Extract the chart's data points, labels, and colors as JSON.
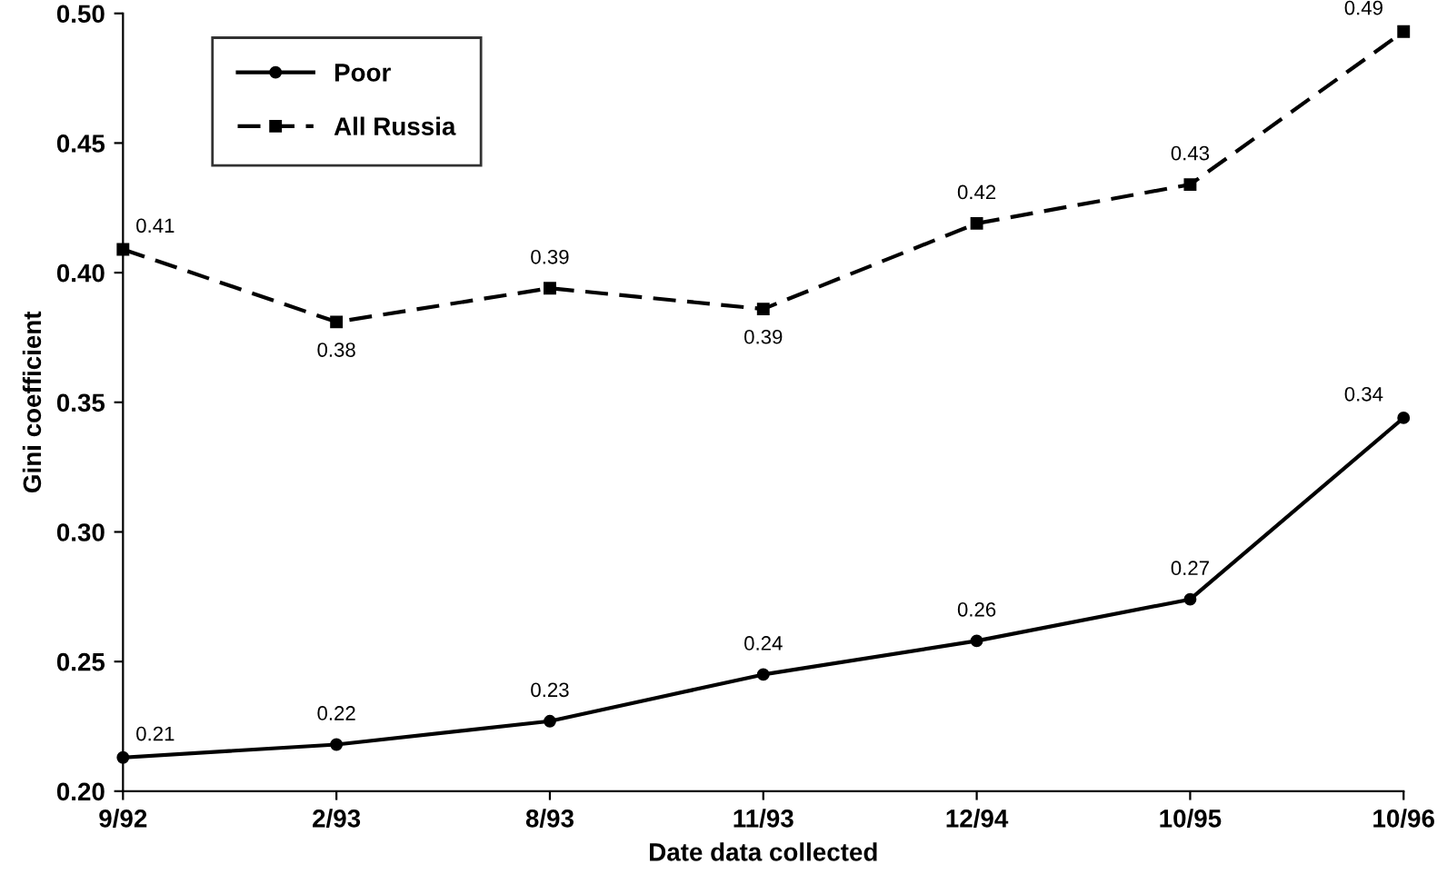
{
  "chart_data": {
    "type": "line",
    "xlabel": "Date data collected",
    "ylabel": "Gini coefficient",
    "categories": [
      "9/92",
      "2/93",
      "8/93",
      "11/93",
      "12/94",
      "10/95",
      "10/96"
    ],
    "series": [
      {
        "name": "Poor",
        "color": "#000000",
        "marker": "circle",
        "line_style": "solid",
        "values": [
          0.213,
          0.218,
          0.227,
          0.245,
          0.258,
          0.274,
          0.344
        ],
        "value_labels": [
          "0.21",
          "0.22",
          "0.23",
          "0.24",
          "0.26",
          "0.27",
          "0.34"
        ]
      },
      {
        "name": "All Russia",
        "color": "#000000",
        "marker": "square",
        "line_style": "dashed",
        "values": [
          0.409,
          0.381,
          0.394,
          0.386,
          0.419,
          0.434,
          0.493
        ],
        "value_labels": [
          "0.41",
          "0.38",
          "0.39",
          "0.39",
          "0.42",
          "0.43",
          "0.49"
        ]
      }
    ],
    "ylim": [
      0.2,
      0.5
    ],
    "yticks": [
      {
        "value": 0.2,
        "label": "0.20"
      },
      {
        "value": 0.25,
        "label": "0.25"
      },
      {
        "value": 0.3,
        "label": "0.30"
      },
      {
        "value": 0.35,
        "label": "0.35"
      },
      {
        "value": 0.4,
        "label": "0.40"
      },
      {
        "value": 0.45,
        "label": "0.45"
      },
      {
        "value": 0.5,
        "label": "0.50"
      }
    ],
    "grid": false,
    "legend": "top left"
  }
}
